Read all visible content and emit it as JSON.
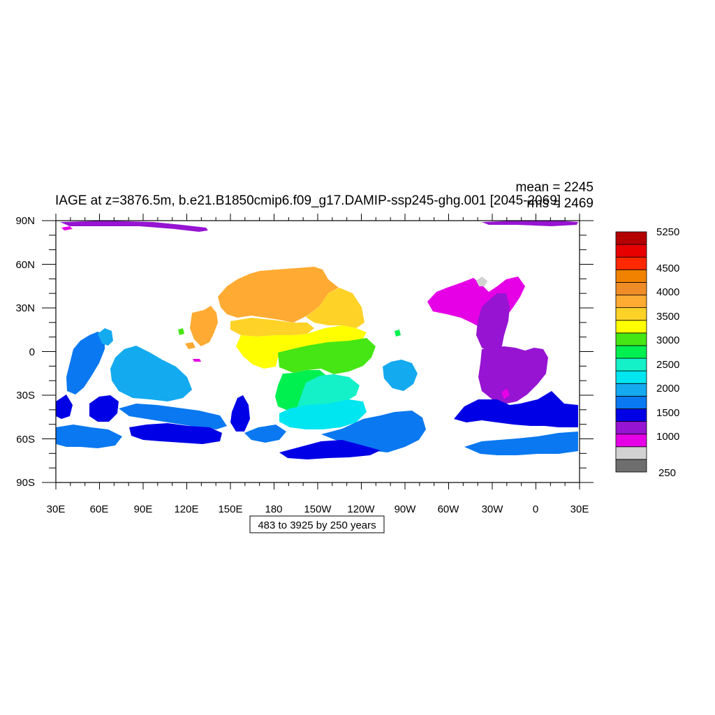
{
  "title": "IAGE at z=3876.5m, b.e21.B1850cmip6.f09_g17.DAMIP-ssp245-ghg.001 [2045-2069]",
  "stats": {
    "mean": "mean = 2245",
    "rms": "rms = 2469"
  },
  "contour_info": "483 to 3925 by 250 years",
  "lon_labels": [
    "30E",
    "60E",
    "90E",
    "120E",
    "150E",
    "180",
    "150W",
    "120W",
    "90W",
    "60W",
    "30W",
    "0",
    "30E"
  ],
  "lat_labels": [
    "90N",
    "60N",
    "30N",
    "0",
    "30S",
    "60S",
    "90S"
  ],
  "colorbar": {
    "colors": [
      "#6e6e6e",
      "#d2d2d2",
      "#e600e6",
      "#9614d2",
      "#0000e6",
      "#0a78f0",
      "#14aaf0",
      "#00e6f0",
      "#14f0c8",
      "#00f050",
      "#46e614",
      "#ffff00",
      "#ffd228",
      "#ffaa32",
      "#f08c28",
      "#f08200",
      "#ff2800",
      "#e60000",
      "#b40000"
    ],
    "labels": [
      "250",
      "1000",
      "1500",
      "2000",
      "2500",
      "3000",
      "3500",
      "4000",
      "4500",
      "5250"
    ]
  },
  "chart_data": {
    "type": "heatmap",
    "title": "IAGE at z=3876.5m, b.e21.B1850cmip6.f09_g17.DAMIP-ssp245-ghg.001 [2045-2069]",
    "xlim": [
      "30E",
      "30E"
    ],
    "ylim": [
      "90S",
      "90N"
    ],
    "colorbar_range": [
      250,
      5250
    ],
    "contour_levels": "483 to 3925 by 250 years",
    "mean": 2245,
    "rms": 2469
  }
}
